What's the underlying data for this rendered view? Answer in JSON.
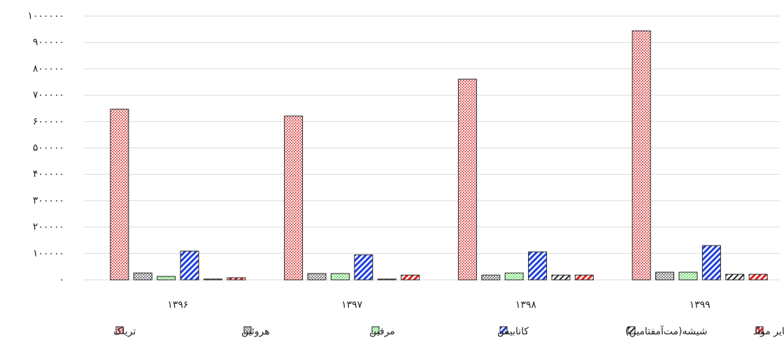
{
  "chart_data": {
    "type": "bar",
    "categories": [
      "۱۳۹۶",
      "۱۳۹۷",
      "۱۳۹۸",
      "۱۳۹۹"
    ],
    "series": [
      {
        "name": "تریاک",
        "color": "#e06666",
        "values": [
          647000,
          621000,
          761000,
          944000
        ]
      },
      {
        "name": "هروئین",
        "color": "#7f7f7f",
        "values": [
          26000,
          24000,
          18000,
          29000
        ]
      },
      {
        "name": "مرفین",
        "color": "#7ee07e",
        "values": [
          13000,
          24000,
          26000,
          29000
        ]
      },
      {
        "name": "کانابیس",
        "color": "#1f3fe0",
        "values": [
          109000,
          95000,
          106000,
          130000
        ]
      },
      {
        "name": "شیشه(مت‌آمفتامین)",
        "color": "#222222",
        "values": [
          3000,
          3000,
          18000,
          21000
        ]
      },
      {
        "name": "سایر مواد",
        "color": "#e02020",
        "values": [
          8000,
          18000,
          18000,
          21000
        ]
      }
    ],
    "ylim": [
      0,
      1000000
    ],
    "yticks": [
      {
        "value": 0,
        "label": "۰"
      },
      {
        "value": 100000,
        "label": "۱۰۰۰۰۰"
      },
      {
        "value": 200000,
        "label": "۲۰۰۰۰۰"
      },
      {
        "value": 300000,
        "label": "۳۰۰۰۰۰"
      },
      {
        "value": 400000,
        "label": "۴۰۰۰۰۰"
      },
      {
        "value": 500000,
        "label": "۵۰۰۰۰۰"
      },
      {
        "value": 600000,
        "label": "۶۰۰۰۰۰"
      },
      {
        "value": 700000,
        "label": "۷۰۰۰۰۰"
      },
      {
        "value": 800000,
        "label": "۸۰۰۰۰۰"
      },
      {
        "value": 900000,
        "label": "۹۰۰۰۰۰"
      },
      {
        "value": 1000000,
        "label": "۱۰۰۰۰۰۰"
      }
    ],
    "grid": true,
    "legend": "bottom"
  }
}
